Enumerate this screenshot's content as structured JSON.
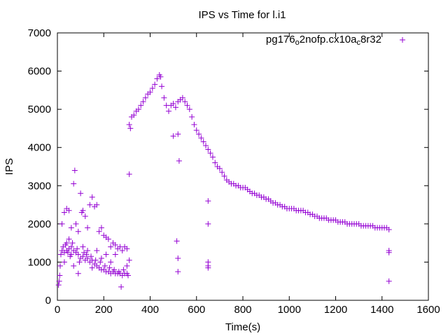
{
  "chart_data": {
    "type": "scatter",
    "title": "IPS vs Time for l.i1",
    "xlabel": "Time(s)",
    "ylabel": "IPS",
    "xlim": [
      0,
      1600
    ],
    "ylim": [
      0,
      7000
    ],
    "xticks": [
      0,
      200,
      400,
      600,
      800,
      1000,
      1200,
      1400,
      1600
    ],
    "yticks": [
      0,
      1000,
      2000,
      3000,
      4000,
      5000,
      6000,
      7000
    ],
    "grid": false,
    "legend_position": "top-right",
    "series": [
      {
        "name": "pg176_o2nofp.cx10a_c8r32",
        "color": "#9400d3",
        "marker": "plus",
        "points": [
          [
            5,
            400
          ],
          [
            8,
            500
          ],
          [
            10,
            650
          ],
          [
            12,
            900
          ],
          [
            15,
            1200
          ],
          [
            20,
            1300
          ],
          [
            25,
            1400
          ],
          [
            30,
            1250
          ],
          [
            40,
            1300
          ],
          [
            50,
            1350
          ],
          [
            60,
            1200
          ],
          [
            70,
            1300
          ],
          [
            80,
            1250
          ],
          [
            90,
            1200
          ],
          [
            100,
            1100
          ],
          [
            110,
            1150
          ],
          [
            120,
            1050
          ],
          [
            130,
            1100
          ],
          [
            140,
            1000
          ],
          [
            150,
            1050
          ],
          [
            160,
            950
          ],
          [
            170,
            900
          ],
          [
            180,
            850
          ],
          [
            190,
            800
          ],
          [
            200,
            800
          ],
          [
            210,
            750
          ],
          [
            220,
            750
          ],
          [
            230,
            700
          ],
          [
            240,
            750
          ],
          [
            250,
            700
          ],
          [
            260,
            700
          ],
          [
            270,
            700
          ],
          [
            280,
            650
          ],
          [
            290,
            700
          ],
          [
            300,
            700
          ],
          [
            305,
            650
          ],
          [
            20,
            2000
          ],
          [
            30,
            2300
          ],
          [
            40,
            2400
          ],
          [
            50,
            2350
          ],
          [
            60,
            1900
          ],
          [
            70,
            3050
          ],
          [
            75,
            3400
          ],
          [
            80,
            2000
          ],
          [
            90,
            1800
          ],
          [
            100,
            2800
          ],
          [
            105,
            2300
          ],
          [
            110,
            2350
          ],
          [
            120,
            2200
          ],
          [
            130,
            1900
          ],
          [
            140,
            2500
          ],
          [
            150,
            2700
          ],
          [
            160,
            2450
          ],
          [
            170,
            2500
          ],
          [
            180,
            1800
          ],
          [
            190,
            1900
          ],
          [
            200,
            1700
          ],
          [
            210,
            1650
          ],
          [
            220,
            1600
          ],
          [
            230,
            1400
          ],
          [
            240,
            1500
          ],
          [
            250,
            1450
          ],
          [
            260,
            1350
          ],
          [
            270,
            1400
          ],
          [
            280,
            1300
          ],
          [
            290,
            1400
          ],
          [
            300,
            1350
          ],
          [
            310,
            1050
          ],
          [
            30,
            1000
          ],
          [
            40,
            1500
          ],
          [
            50,
            1600
          ],
          [
            60,
            1400
          ],
          [
            70,
            900
          ],
          [
            90,
            700
          ],
          [
            110,
            1400
          ],
          [
            130,
            1300
          ],
          [
            150,
            850
          ],
          [
            170,
            1300
          ],
          [
            190,
            1100
          ],
          [
            210,
            1200
          ],
          [
            230,
            1000
          ],
          [
            250,
            1200
          ],
          [
            275,
            350
          ],
          [
            300,
            900
          ],
          [
            35,
            1450
          ],
          [
            45,
            1250
          ],
          [
            55,
            1150
          ],
          [
            65,
            1500
          ],
          [
            85,
            1350
          ],
          [
            95,
            1000
          ],
          [
            115,
            1250
          ],
          [
            125,
            1200
          ],
          [
            145,
            1150
          ],
          [
            165,
            1050
          ],
          [
            185,
            1000
          ],
          [
            205,
            900
          ],
          [
            225,
            850
          ],
          [
            245,
            800
          ],
          [
            265,
            750
          ],
          [
            285,
            800
          ],
          [
            310,
            4600
          ],
          [
            315,
            4500
          ],
          [
            320,
            4800
          ],
          [
            330,
            4850
          ],
          [
            340,
            4950
          ],
          [
            350,
            5000
          ],
          [
            360,
            5100
          ],
          [
            370,
            5200
          ],
          [
            380,
            5300
          ],
          [
            390,
            5400
          ],
          [
            400,
            5450
          ],
          [
            410,
            5550
          ],
          [
            420,
            5650
          ],
          [
            430,
            5800
          ],
          [
            440,
            5900
          ],
          [
            445,
            5850
          ],
          [
            450,
            5600
          ],
          [
            460,
            5300
          ],
          [
            470,
            5100
          ],
          [
            480,
            4950
          ],
          [
            490,
            5100
          ],
          [
            500,
            5150
          ],
          [
            510,
            5050
          ],
          [
            520,
            5200
          ],
          [
            530,
            5250
          ],
          [
            540,
            5300
          ],
          [
            550,
            5200
          ],
          [
            560,
            5100
          ],
          [
            570,
            5000
          ],
          [
            580,
            4800
          ],
          [
            590,
            4600
          ],
          [
            600,
            4450
          ],
          [
            610,
            4350
          ],
          [
            620,
            4250
          ],
          [
            630,
            4150
          ],
          [
            640,
            4050
          ],
          [
            650,
            3950
          ],
          [
            660,
            3850
          ],
          [
            670,
            3750
          ],
          [
            680,
            3600
          ],
          [
            690,
            3500
          ],
          [
            700,
            3450
          ],
          [
            710,
            3350
          ],
          [
            720,
            3250
          ],
          [
            730,
            3150
          ],
          [
            740,
            3100
          ],
          [
            750,
            3050
          ],
          [
            760,
            3050
          ],
          [
            770,
            3000
          ],
          [
            780,
            3000
          ],
          [
            790,
            2950
          ],
          [
            800,
            2950
          ],
          [
            810,
            2950
          ],
          [
            820,
            2900
          ],
          [
            830,
            2850
          ],
          [
            840,
            2800
          ],
          [
            850,
            2800
          ],
          [
            860,
            2750
          ],
          [
            870,
            2750
          ],
          [
            880,
            2700
          ],
          [
            890,
            2700
          ],
          [
            900,
            2650
          ],
          [
            910,
            2650
          ],
          [
            920,
            2600
          ],
          [
            930,
            2550
          ],
          [
            940,
            2550
          ],
          [
            950,
            2500
          ],
          [
            960,
            2500
          ],
          [
            970,
            2450
          ],
          [
            980,
            2450
          ],
          [
            990,
            2400
          ],
          [
            1000,
            2400
          ],
          [
            1010,
            2400
          ],
          [
            1020,
            2400
          ],
          [
            1030,
            2350
          ],
          [
            1040,
            2350
          ],
          [
            1050,
            2350
          ],
          [
            1060,
            2350
          ],
          [
            1070,
            2300
          ],
          [
            1080,
            2300
          ],
          [
            1090,
            2250
          ],
          [
            1100,
            2250
          ],
          [
            1110,
            2200
          ],
          [
            1120,
            2200
          ],
          [
            1130,
            2150
          ],
          [
            1140,
            2150
          ],
          [
            1150,
            2150
          ],
          [
            1160,
            2150
          ],
          [
            1170,
            2100
          ],
          [
            1180,
            2100
          ],
          [
            1190,
            2100
          ],
          [
            1200,
            2100
          ],
          [
            1210,
            2050
          ],
          [
            1220,
            2050
          ],
          [
            1230,
            2050
          ],
          [
            1240,
            2050
          ],
          [
            1250,
            2000
          ],
          [
            1260,
            2000
          ],
          [
            1270,
            2000
          ],
          [
            1280,
            2000
          ],
          [
            1290,
            2000
          ],
          [
            1300,
            2000
          ],
          [
            1310,
            1950
          ],
          [
            1320,
            1950
          ],
          [
            1330,
            1950
          ],
          [
            1340,
            1950
          ],
          [
            1350,
            1950
          ],
          [
            1360,
            1950
          ],
          [
            1370,
            1900
          ],
          [
            1380,
            1900
          ],
          [
            1390,
            1900
          ],
          [
            1400,
            1900
          ],
          [
            1410,
            1900
          ],
          [
            1420,
            1900
          ],
          [
            1430,
            1850
          ],
          [
            310,
            3300
          ],
          [
            500,
            4300
          ],
          [
            520,
            4350
          ],
          [
            525,
            3650
          ],
          [
            515,
            1550
          ],
          [
            520,
            1100
          ],
          [
            520,
            750
          ],
          [
            650,
            2600
          ],
          [
            650,
            2000
          ],
          [
            650,
            1000
          ],
          [
            650,
            850
          ],
          [
            650,
            900
          ],
          [
            1430,
            1300
          ],
          [
            1430,
            1250
          ],
          [
            1430,
            500
          ]
        ]
      }
    ]
  }
}
